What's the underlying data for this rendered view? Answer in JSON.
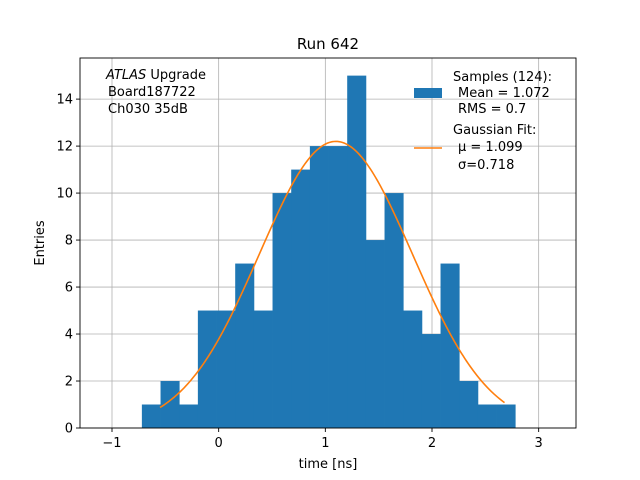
{
  "chart_data": {
    "type": "bar",
    "title": "Run 642",
    "xlabel": "time [ns]",
    "ylabel": "Entries",
    "xlim": [
      -1.3,
      3.35
    ],
    "ylim": [
      0,
      15.75
    ],
    "xticks": [
      -1,
      0,
      1,
      2,
      3
    ],
    "yticks": [
      0,
      2,
      4,
      6,
      8,
      10,
      12,
      14
    ],
    "grid": true,
    "legend_position": "top-right",
    "colors": {
      "hist": "#1f77b4",
      "fit": "#ff7f0e"
    },
    "annotation": {
      "line1_italic": "ATLAS",
      "line1_rest": " Upgrade",
      "line2": "Board187722",
      "line3": "Ch030 35dB"
    },
    "histogram": {
      "name_lines": [
        "Samples (124):",
        "Mean = 1.072",
        "RMS = 0.7"
      ],
      "bin_edges": [
        -0.72,
        -0.545,
        -0.37,
        -0.195,
        -0.02,
        0.155,
        0.33,
        0.505,
        0.68,
        0.855,
        1.03,
        1.205,
        1.38,
        1.555,
        1.73,
        1.905,
        2.08,
        2.255,
        2.43,
        2.605,
        2.78
      ],
      "counts": [
        1,
        2,
        1,
        5,
        5,
        7,
        5,
        10,
        11,
        12,
        12,
        15,
        8,
        10,
        5,
        4,
        7,
        2,
        1,
        1
      ]
    },
    "fit": {
      "name_lines": [
        "Gaussian Fit:",
        "μ = 1.099",
        "σ=0.718"
      ],
      "amplitude": 12.2,
      "mu": 1.099,
      "sigma": 0.718,
      "x_range": [
        -0.55,
        2.68
      ]
    }
  }
}
